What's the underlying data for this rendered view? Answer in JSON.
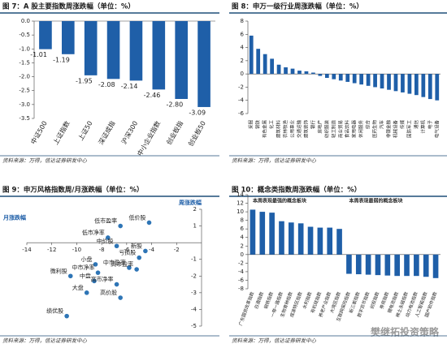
{
  "chart_data": [
    {
      "type": "bar",
      "title": "图 7：A 股主要指数周涨跌幅（单位：%）",
      "source": "资料来源：万得，信达证券研发中心",
      "categories": [
        "中证500",
        "上证指数",
        "上证50",
        "深证成指",
        "沪深300",
        "中小企业指数",
        "创业板指",
        "创业板50"
      ],
      "values": [
        -1.01,
        -1.19,
        -1.95,
        -2.08,
        -2.14,
        -2.46,
        -2.8,
        -3.09
      ],
      "value_labels": [
        "-1.01",
        "-1.19",
        "-1.95",
        "-2.08",
        "-2.14",
        "-2.46",
        "-2.80",
        "-3.09"
      ],
      "color": "#1f5fa8",
      "ylim": [
        -3.5,
        0
      ],
      "yticks": [
        {
          "value": 0,
          "label": "0.0"
        },
        {
          "value": -0.5,
          "label": "-0.5"
        },
        {
          "value": -1,
          "label": "-1.0"
        },
        {
          "value": -1.5,
          "label": "-1.5"
        },
        {
          "value": -2,
          "label": "-2.0"
        },
        {
          "value": -2.5,
          "label": "-2.5"
        },
        {
          "value": -3,
          "label": "-3.0"
        },
        {
          "value": -3.5,
          "label": "-3.5"
        }
      ]
    },
    {
      "type": "bar",
      "title": "图 8：申万一级行业周涨跌幅（单位：%）",
      "source": "资料来源：万得，信达证券研发中心",
      "categories": [
        "采掘",
        "钢铁",
        "有色金属",
        "化工",
        "建筑材料",
        "农林牧渔",
        "公用事业",
        "交通运输",
        "建筑装饰",
        "银行",
        "房地产",
        "纺织服装",
        "轻工制造",
        "商业贸易",
        "食品饮料",
        "家用电器",
        "休闲服务",
        "综合",
        "医药生物",
        "汽车",
        "非银金融",
        "机械设备",
        "传媒",
        "国防军工",
        "通信",
        "计算机",
        "电子",
        "电气设备"
      ],
      "values": [
        5.8,
        3.8,
        3.0,
        2.3,
        1.4,
        1.0,
        0.8,
        0.5,
        0.4,
        0.2,
        -0.3,
        -0.6,
        -0.8,
        -1.0,
        -1.2,
        -1.4,
        -1.6,
        -1.8,
        -2.0,
        -2.2,
        -2.4,
        -2.6,
        -2.8,
        -3.0,
        -3.2,
        -3.5,
        -3.8,
        -4.0
      ],
      "color": "#1f5fa8",
      "ylim": [
        -6,
        8
      ],
      "yticks": [
        -6,
        -4,
        -2,
        0,
        2,
        4,
        6,
        8
      ]
    },
    {
      "type": "scatter",
      "title": "图 9：申万风格指数周/月涨跌幅（单位：%）",
      "source": "资料来源：万得，信达证券研发中心",
      "x_label": "周涨跌幅",
      "y_label": "月涨跌幅",
      "labels": [
        "低市盈率",
        "低价股",
        "低市净率",
        "中价股",
        "新股",
        "亏损股",
        "中市盈率",
        "高市盈率",
        "小盘",
        "中市净率",
        "中盘",
        "微利股",
        "高市净率",
        "大盘",
        "高价股",
        "绩优股"
      ],
      "x": [
        -6.5,
        -4.2,
        -7.5,
        -6.8,
        -4.5,
        -5.0,
        -5.8,
        -5.2,
        -8.5,
        -8.3,
        -8.6,
        -10.5,
        -6.8,
        -9.2,
        -6.5,
        -10.8
      ],
      "values": [
        1.0,
        1.2,
        0.3,
        -0.2,
        -0.5,
        -0.9,
        -1.5,
        -1.6,
        -1.3,
        -1.8,
        -2.3,
        -2.0,
        -2.5,
        -3.0,
        -3.3,
        -4.4
      ],
      "color": "#2e75b6",
      "xlim": [
        -14,
        0
      ],
      "xticks": [
        -14,
        -12,
        -10,
        -8,
        -6,
        -4,
        -2
      ],
      "ylim": [
        -5,
        2
      ],
      "yticks": [
        2,
        1,
        -1,
        -2,
        -3,
        -4,
        -5
      ]
    },
    {
      "type": "bar",
      "title": "图 10：概念类指数周涨跌幅（单位：%）",
      "source": "资料来源：万得，信达证券研发中心",
      "annotations": [
        "本周表现最强的概念板块",
        "本周表现最弱的概念板块"
      ],
      "categories": [
        "广东国资改革指数",
        "白酒指数",
        "钢铁指数",
        "一带一路指数",
        "生物育种指数",
        "成渝特区指数",
        "水利指数",
        "有机硅指数",
        "养老产业指数",
        "大湾区指数",
        "互联网保险指数",
        "新三板指数",
        "数字货币指数",
        "创投指数",
        "券商指数",
        "锂电池指数",
        "稀土永磁指数",
        "动力电池指数",
        "人工智能指数",
        "国产软件指数"
      ],
      "values": [
        10.5,
        10.0,
        9.8,
        7.8,
        7.5,
        7.3,
        6.5,
        6.3,
        6.3,
        6.0,
        -4.5,
        -4.6,
        -4.7,
        -4.8,
        -4.9,
        -5.0,
        -5.0,
        -5.0,
        -5.2,
        -5.5
      ],
      "color": "#1f5fa8",
      "ylim": [
        -8,
        14
      ],
      "yticks": [
        -8,
        -6,
        -4,
        -2,
        0,
        2,
        4,
        6,
        8,
        10,
        12,
        14
      ]
    }
  ],
  "watermark": "樊继拓投资策略"
}
